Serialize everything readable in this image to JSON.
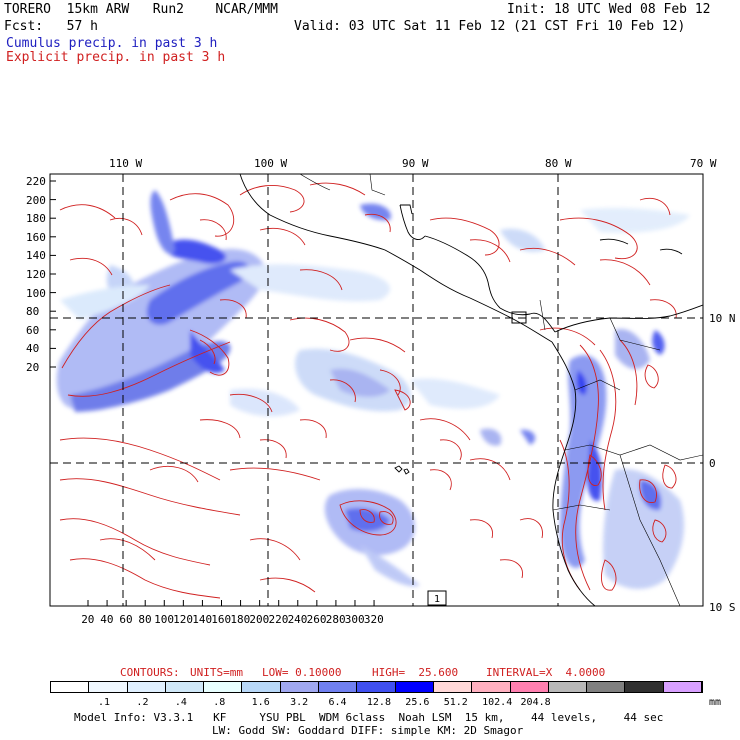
{
  "header": {
    "line1_left": "TORERO  15km ARW   Run2    NCAR/MMM",
    "line1_right": "Init: 18 UTC Wed 08 Feb 12",
    "line2_left": "Fcst:   57 h",
    "line2_right": "Valid: 03 UTC Sat 11 Feb 12 (21 CST Fri 10 Feb 12)",
    "field1": "Cumulus precip. in past 3 h",
    "field2": "Explicit precip. in past 3 h"
  },
  "map": {
    "lon_labels": [
      "110 W",
      "100 W",
      "90 W",
      "80 W",
      "70 W"
    ],
    "lat_labels": [
      "10 N",
      "0",
      "10 S"
    ],
    "y_ticks": [
      "220",
      "200",
      "180",
      "160",
      "140",
      "120",
      "100",
      "80",
      "60",
      "40",
      "20"
    ],
    "x_ticks": [
      "20",
      "40",
      "60",
      "80",
      "100",
      "120",
      "140",
      "160",
      "180",
      "200",
      "220",
      "240",
      "260",
      "280",
      "300",
      "320"
    ],
    "box_label": "1",
    "contour_color": "#d02020",
    "land_line_color": "#000000"
  },
  "contour_info": {
    "contours": "CONTOURS:",
    "units": "UNITS=mm",
    "low": "LOW= 0.10000",
    "high": "HIGH=  25.600",
    "interval": "INTERVAL=X  4.0000"
  },
  "colorbar": {
    "colors": [
      "#ffffff",
      "#f0f8ff",
      "#e0f0ff",
      "#d0e8f8",
      "#e8ffff",
      "#b8d8f8",
      "#a0a8f0",
      "#7080f0",
      "#4050f0",
      "#0000ff",
      "#ffd8d8",
      "#ffb0c0",
      "#ff80b0",
      "#b8b8b8",
      "#808080",
      "#303030",
      "#d8a0ff"
    ],
    "labels": [
      ".1",
      ".2",
      ".4",
      ".8",
      "1.6",
      "3.2",
      "6.4",
      "12.8",
      "25.6",
      "51.2",
      "102.4",
      "204.8"
    ],
    "unit": "mm"
  },
  "footer": {
    "line1": "Model Info: V3.3.1   KF     YSU PBL  WDM 6class  Noah LSM  15 km,    44 levels,    44 sec",
    "line2": "LW: Godd SW: Goddard DIFF: simple KM: 2D Smagor"
  }
}
